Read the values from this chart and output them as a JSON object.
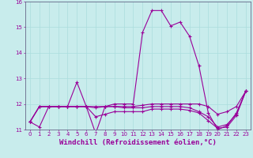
{
  "xlabel": "Windchill (Refroidissement éolien,°C)",
  "background_color": "#c8ecec",
  "line_color": "#990099",
  "marker": "+",
  "xlim": [
    -0.5,
    23.5
  ],
  "ylim": [
    11.0,
    16.0
  ],
  "yticks": [
    11,
    12,
    13,
    14,
    15,
    16
  ],
  "xticks": [
    0,
    1,
    2,
    3,
    4,
    5,
    6,
    7,
    8,
    9,
    10,
    11,
    12,
    13,
    14,
    15,
    16,
    17,
    18,
    19,
    20,
    21,
    22,
    23
  ],
  "series": [
    [
      11.3,
      11.1,
      11.9,
      11.9,
      11.9,
      12.85,
      11.9,
      10.85,
      11.9,
      12.0,
      12.0,
      12.0,
      14.8,
      15.65,
      15.65,
      15.05,
      15.2,
      14.65,
      13.5,
      11.65,
      11.0,
      11.15,
      11.65,
      12.5
    ],
    [
      11.3,
      11.9,
      11.9,
      11.9,
      11.9,
      11.9,
      11.9,
      11.9,
      11.9,
      11.9,
      11.9,
      11.9,
      11.95,
      12.0,
      12.0,
      12.0,
      12.0,
      12.0,
      12.0,
      11.9,
      11.6,
      11.7,
      11.9,
      12.5
    ],
    [
      11.3,
      11.9,
      11.9,
      11.9,
      11.9,
      11.9,
      11.9,
      11.85,
      11.9,
      11.9,
      11.85,
      11.85,
      11.85,
      11.9,
      11.9,
      11.9,
      11.9,
      11.85,
      11.7,
      11.5,
      11.1,
      11.2,
      11.6,
      12.5
    ],
    [
      11.3,
      11.9,
      11.9,
      11.9,
      11.9,
      11.9,
      11.9,
      11.5,
      11.6,
      11.7,
      11.7,
      11.7,
      11.7,
      11.8,
      11.8,
      11.8,
      11.8,
      11.75,
      11.65,
      11.35,
      11.05,
      11.1,
      11.55,
      12.5
    ]
  ],
  "grid_color": "#aadddd",
  "grid_linewidth": 0.5,
  "spine_color": "#666688",
  "tick_fontsize": 5,
  "xlabel_fontsize": 6.5,
  "linewidth": 0.8,
  "markersize": 3.0
}
